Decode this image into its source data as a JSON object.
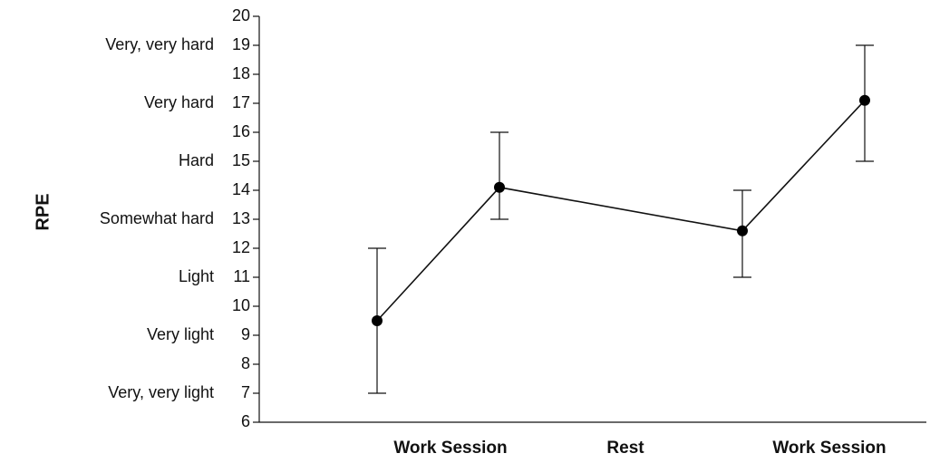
{
  "chart_data": {
    "type": "line",
    "ylabel": "RPE",
    "xlabel": "",
    "ylim": [
      6,
      20
    ],
    "y_ticks": [
      "6",
      "7",
      "8",
      "9",
      "10",
      "11",
      "12",
      "13",
      "14",
      "15",
      "16",
      "17",
      "18",
      "19",
      "20"
    ],
    "verbal_anchors": [
      {
        "value": 19,
        "label": "Very, very hard"
      },
      {
        "value": 17,
        "label": "Very hard"
      },
      {
        "value": 15,
        "label": "Hard"
      },
      {
        "value": 13,
        "label": "Somewhat hard"
      },
      {
        "value": 11,
        "label": "Light"
      },
      {
        "value": 9,
        "label": "Very light"
      },
      {
        "value": 7,
        "label": "Very, very light"
      }
    ],
    "category_labels": [
      "Work Session",
      "Rest",
      "Work Session"
    ],
    "points": [
      {
        "y": 9.5,
        "low": 7,
        "high": 12
      },
      {
        "y": 14.1,
        "low": 13,
        "high": 16
      },
      {
        "y": 12.6,
        "low": 11,
        "high": 14
      },
      {
        "y": 17.1,
        "low": 15,
        "high": 19
      }
    ],
    "grid": false
  }
}
